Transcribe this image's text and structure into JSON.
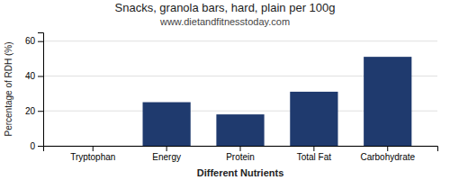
{
  "chart_data": {
    "type": "bar",
    "title": "Snacks, granola bars, hard, plain per 100g",
    "subtitle": "www.dietandfitnesstoday.com",
    "xlabel": "Different Nutrients",
    "ylabel": "Percentage of RDH (%)",
    "categories": [
      "Tryptophan",
      "Energy",
      "Protein",
      "Total Fat",
      "Carbohydrate"
    ],
    "values": [
      0,
      25,
      18,
      31,
      51
    ],
    "color": "#1f3a6e",
    "ylim": [
      0,
      65
    ],
    "yticks": [
      0,
      20,
      40,
      60
    ],
    "grid": true
  }
}
